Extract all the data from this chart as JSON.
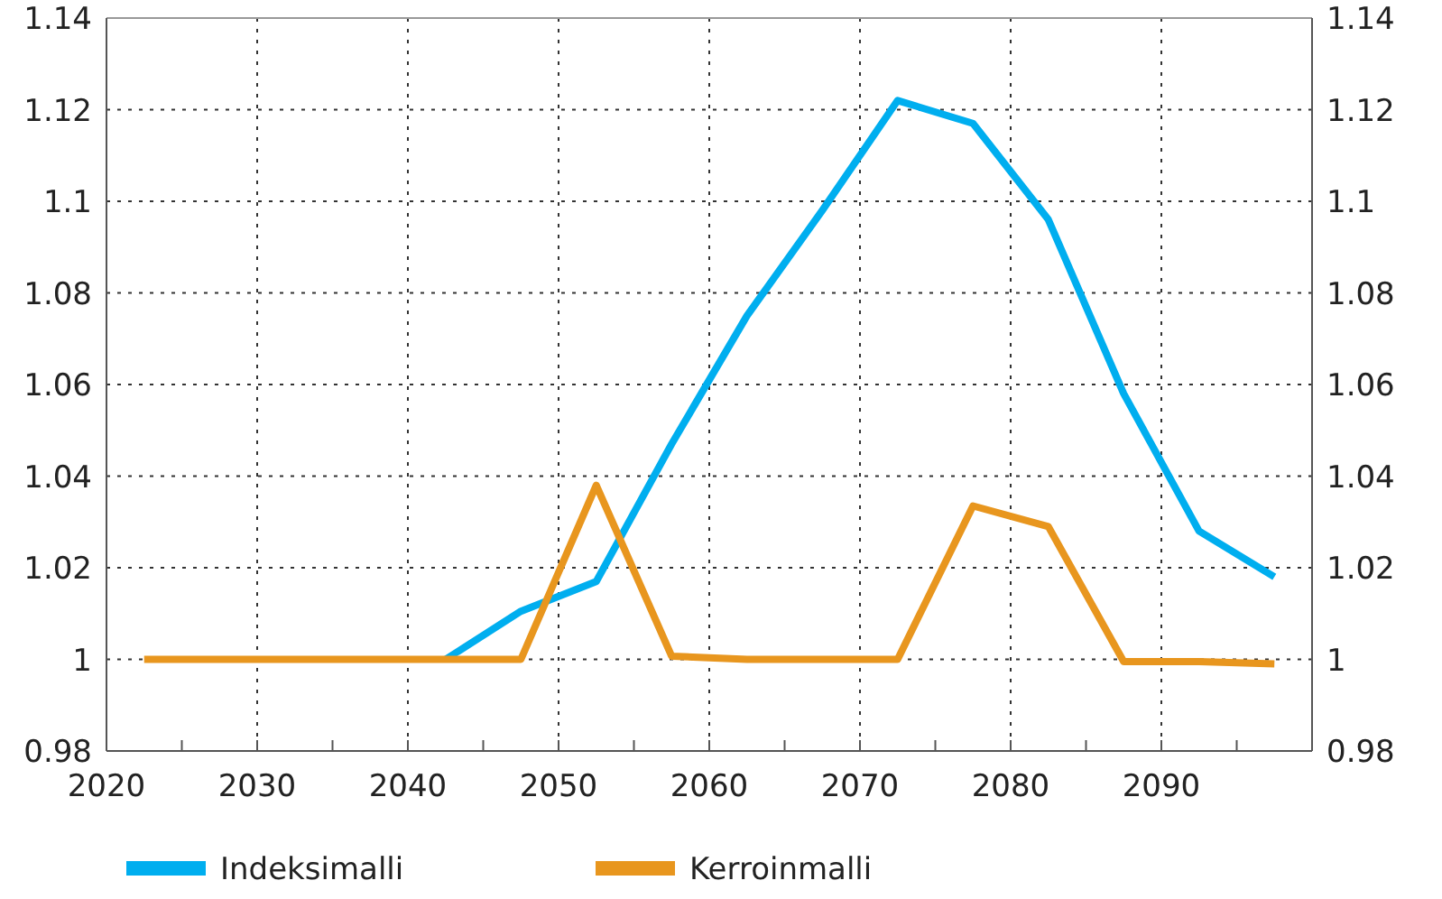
{
  "chart_data": {
    "type": "line",
    "x": [
      2022.5,
      2027.5,
      2032.5,
      2037.5,
      2042.5,
      2047.5,
      2052.5,
      2057.5,
      2062.5,
      2067.5,
      2072.5,
      2077.5,
      2082.5,
      2087.5,
      2092.5,
      2097.5
    ],
    "series": [
      {
        "name": "Indeksimalli",
        "color": "#00aeef",
        "values": [
          null,
          null,
          null,
          null,
          1,
          1.0105,
          1.017,
          1.047,
          1.075,
          1.098,
          1.122,
          1.117,
          1.096,
          1.058,
          1.028,
          1.018
        ]
      },
      {
        "name": "Kerroinmalli",
        "color": "#e8961e",
        "values": [
          1,
          1,
          1,
          1,
          1,
          1,
          1.038,
          1.0007,
          1,
          1,
          1,
          1.0335,
          1.029,
          0.9995,
          0.9995,
          0.999
        ]
      }
    ],
    "xlim": [
      2020,
      2100
    ],
    "xticks": [
      2020,
      {
        "value": 2025,
        "label": null
      },
      2030,
      {
        "value": 2035,
        "label": null
      },
      2040,
      {
        "value": 2045,
        "label": null
      },
      2050,
      {
        "value": 2055,
        "label": null
      },
      2060,
      {
        "value": 2065,
        "label": null
      },
      2070,
      {
        "value": 2075,
        "label": null
      },
      2080,
      {
        "value": 2085,
        "label": null
      },
      2090,
      {
        "value": 2095,
        "label": null
      }
    ],
    "ylim": [
      0.98,
      1.14
    ],
    "yticks": [
      0.98,
      1,
      1.02,
      1.04,
      1.06,
      1.08,
      1.1,
      1.12,
      1.14
    ],
    "y2lim": [
      0.98,
      1.14
    ],
    "y2ticks": [
      0.98,
      1,
      1.02,
      1.04,
      1.06,
      1.08,
      1.1,
      1.12,
      1.14
    ],
    "grid": true,
    "legend": "bottom",
    "marker": "none",
    "line_style": "solid"
  }
}
